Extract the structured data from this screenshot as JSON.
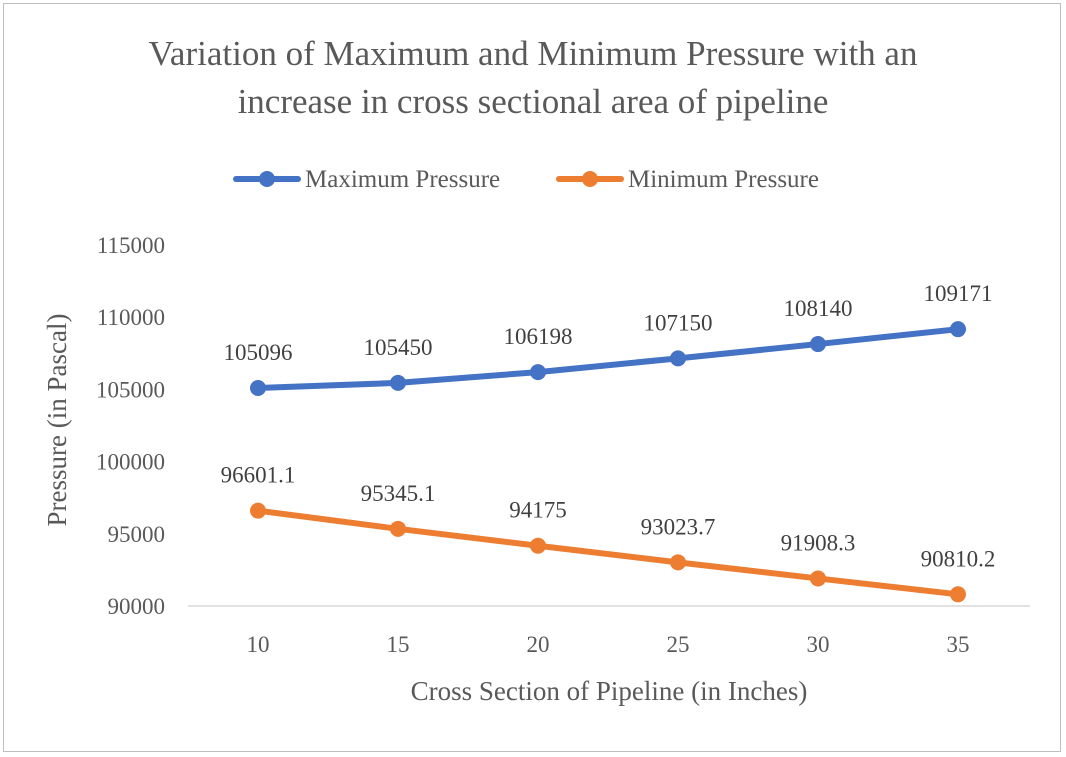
{
  "chart_data": {
    "type": "line",
    "title_lines": [
      "Variation of Maximum and Minimum Pressure with an",
      "increase in cross sectional area of pipeline"
    ],
    "xlabel": "Cross Section of Pipeline (in Inches)",
    "ylabel": "Pressure (in Pascal)",
    "categories": [
      "10",
      "15",
      "20",
      "25",
      "30",
      "35"
    ],
    "y_ticks": [
      "90000",
      "95000",
      "100000",
      "105000",
      "110000",
      "115000"
    ],
    "ylim": [
      90000,
      115000
    ],
    "legend_position": "top",
    "grid": false,
    "series": [
      {
        "name": "Maximum Pressure",
        "color": "#4472c4",
        "values": [
          105096,
          105450,
          106198,
          107150,
          108140,
          109171
        ],
        "labels": [
          "105096",
          "105450",
          "106198",
          "107150",
          "108140",
          "109171"
        ]
      },
      {
        "name": "Minimum Pressure",
        "color": "#ed7d31",
        "values": [
          96601.1,
          95345.1,
          94175,
          93023.7,
          91908.3,
          90810.2
        ],
        "labels": [
          "96601.1",
          "95345.1",
          "94175",
          "93023.7",
          "91908.3",
          "90810.2"
        ]
      }
    ]
  }
}
